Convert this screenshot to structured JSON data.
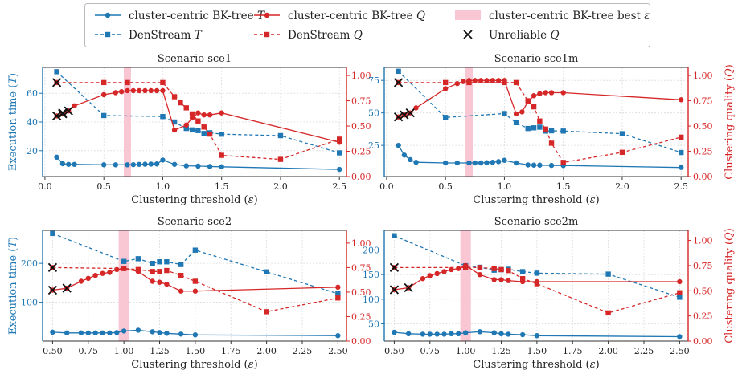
{
  "legend": {
    "entries": [
      {
        "label": "cluster-centric BK-tree T",
        "kind": "bk-T"
      },
      {
        "label": "cluster-centric BK-tree Q",
        "kind": "bk-Q"
      },
      {
        "label": "cluster-centric BK-tree best ε",
        "kind": "best"
      },
      {
        "label": "DenStream T",
        "kind": "ds-T"
      },
      {
        "label": "DenStream Q",
        "kind": "ds-Q"
      },
      {
        "label": "Unreliable Q",
        "kind": "unreliable"
      }
    ]
  },
  "colors": {
    "time": "#1f77b4",
    "quality": "#d62728",
    "band": "#f9c6d3",
    "marker_x": "#111111"
  },
  "chart_data": [
    {
      "type": "line",
      "title": "Scenario sce1",
      "xlabel": "Clustering threshold (ε)",
      "ylabel_left": "Execution time (T)",
      "ylabel_right": "",
      "xlim": [
        -0.02,
        2.56
      ],
      "ylim_left": [
        2,
        78
      ],
      "ylim_right": [
        0,
        1.08
      ],
      "xticks": [
        0.0,
        0.5,
        1.0,
        1.5,
        2.0,
        2.5
      ],
      "xtick_labels": [
        "0.0",
        "0.5",
        "1.0",
        "1.5",
        "2.0",
        "2.5"
      ],
      "yticks_left": [
        20,
        40,
        60
      ],
      "yticks_right": [
        0.0,
        0.25,
        0.5,
        0.75,
        1.0
      ],
      "ytick_labels_right": [
        "0.00",
        "0.25",
        "0.50",
        "0.75",
        "1.00"
      ],
      "best_eps_band": [
        0.69,
        0.71
      ],
      "series": [
        {
          "name": "cluster-centric BK-tree T",
          "axis": "left",
          "x": [
            0.1,
            0.15,
            0.2,
            0.25,
            0.5,
            0.6,
            0.7,
            0.75,
            0.8,
            0.85,
            0.9,
            0.95,
            1.0,
            1.1,
            1.2,
            1.3,
            1.4,
            1.5,
            2.5
          ],
          "y": [
            15.5,
            11,
            10.5,
            10.5,
            10.2,
            10.2,
            10.2,
            10.3,
            10.5,
            10.6,
            10.7,
            10.8,
            13.5,
            10.5,
            9.5,
            9.3,
            9.0,
            8.8,
            7.0
          ]
        },
        {
          "name": "DenStream T",
          "axis": "left",
          "x": [
            0.1,
            0.5,
            1.0,
            1.1,
            1.2,
            1.25,
            1.3,
            1.35,
            1.4,
            1.5,
            2.0,
            2.5
          ],
          "y": [
            75,
            44.5,
            43.8,
            40,
            35.5,
            34.5,
            34,
            32,
            32.5,
            31.5,
            30.5,
            18.5
          ]
        },
        {
          "name": "cluster-centric BK-tree Q",
          "axis": "right",
          "x": [
            0.1,
            0.15,
            0.2,
            0.25,
            0.5,
            0.6,
            0.65,
            0.7,
            0.75,
            0.8,
            0.85,
            0.9,
            0.95,
            1.0,
            1.1,
            1.2,
            1.25,
            1.3,
            1.35,
            1.4,
            1.5,
            2.5
          ],
          "y": [
            0.6,
            0.62,
            0.65,
            0.7,
            0.81,
            0.83,
            0.84,
            0.85,
            0.85,
            0.85,
            0.85,
            0.85,
            0.85,
            0.85,
            0.46,
            0.51,
            0.58,
            0.63,
            0.61,
            0.61,
            0.63,
            0.34
          ]
        },
        {
          "name": "DenStream Q",
          "axis": "right",
          "x": [
            0.1,
            0.5,
            0.7,
            1.0,
            1.1,
            1.15,
            1.2,
            1.25,
            1.3,
            1.35,
            1.4,
            1.5,
            2.0,
            2.5
          ],
          "y": [
            0.93,
            0.93,
            0.93,
            0.93,
            0.79,
            0.73,
            0.68,
            0.62,
            0.55,
            0.49,
            0.42,
            0.21,
            0.17,
            0.37
          ]
        }
      ],
      "unreliable_q": {
        "x": [
          0.1,
          0.15,
          0.2
        ],
        "y": [
          0.93,
          0.63,
          0.65
        ],
        "extra": [
          {
            "x": 0.1,
            "y": 0.6
          },
          {
            "x": 0.15,
            "y": 0.62
          }
        ]
      }
    },
    {
      "type": "line",
      "title": "Scenario sce1m",
      "xlabel": "Clustering threshold (ε)",
      "ylabel_left": "",
      "ylabel_right": "Clustering quality (Q)",
      "xlim": [
        -0.02,
        2.56
      ],
      "ylim_left": [
        1,
        85
      ],
      "ylim_right": [
        0,
        1.08
      ],
      "xticks": [
        0.0,
        0.5,
        1.0,
        1.5,
        2.0,
        2.5
      ],
      "xtick_labels": [
        "0.0",
        "0.5",
        "1.0",
        "1.5",
        "2.0",
        "2.5"
      ],
      "yticks_left": [
        25,
        50,
        75
      ],
      "yticks_right": [
        0.0,
        0.25,
        0.5,
        0.75,
        1.0
      ],
      "ytick_labels_right": [
        "0.00",
        "0.25",
        "0.50",
        "0.75",
        "1.00"
      ],
      "best_eps_band": [
        0.69,
        0.71
      ],
      "series": [
        {
          "name": "cluster-centric BK-tree T",
          "axis": "left",
          "x": [
            0.1,
            0.15,
            0.2,
            0.25,
            0.5,
            0.6,
            0.7,
            0.75,
            0.8,
            0.85,
            0.9,
            0.95,
            1.0,
            1.1,
            1.2,
            1.25,
            1.3,
            1.4,
            1.5,
            2.5
          ],
          "y": [
            25,
            17.5,
            14,
            12,
            11.5,
            11.5,
            11.5,
            11.5,
            11.5,
            11.7,
            12,
            12.5,
            13.5,
            11.5,
            10,
            9.8,
            9.8,
            9.6,
            9.5,
            8.0
          ]
        },
        {
          "name": "DenStream T",
          "axis": "left",
          "x": [
            0.1,
            0.5,
            1.0,
            1.1,
            1.2,
            1.25,
            1.3,
            1.35,
            1.4,
            1.5,
            2.0,
            2.5
          ],
          "y": [
            82,
            46.5,
            49.5,
            42.5,
            38,
            38.5,
            39,
            36,
            36.2,
            36,
            34,
            19.5
          ]
        },
        {
          "name": "cluster-centric BK-tree Q",
          "axis": "right",
          "x": [
            0.1,
            0.15,
            0.2,
            0.25,
            0.5,
            0.6,
            0.65,
            0.7,
            0.75,
            0.8,
            0.85,
            0.9,
            0.95,
            1.0,
            1.1,
            1.15,
            1.2,
            1.25,
            1.3,
            1.35,
            1.4,
            1.5,
            2.5
          ],
          "y": [
            0.59,
            0.61,
            0.63,
            0.68,
            0.87,
            0.92,
            0.94,
            0.95,
            0.95,
            0.95,
            0.95,
            0.95,
            0.95,
            0.95,
            0.62,
            0.64,
            0.74,
            0.8,
            0.82,
            0.83,
            0.83,
            0.83,
            0.76
          ]
        },
        {
          "name": "DenStream Q",
          "axis": "right",
          "x": [
            0.1,
            0.5,
            0.7,
            1.0,
            1.1,
            1.2,
            1.25,
            1.3,
            1.35,
            1.4,
            1.5,
            2.0,
            2.5
          ],
          "y": [
            0.93,
            0.93,
            0.93,
            0.93,
            0.93,
            0.75,
            0.69,
            0.55,
            0.47,
            0.33,
            0.14,
            0.24,
            0.39
          ]
        }
      ],
      "unreliable_q": {
        "x": [
          0.1,
          0.15,
          0.2
        ],
        "y": [
          0.93,
          0.61,
          0.63
        ],
        "extra": [
          {
            "x": 0.1,
            "y": 0.59
          }
        ]
      }
    },
    {
      "type": "line",
      "title": "Scenario sce2",
      "xlabel": "Clustering threshold (ε)",
      "ylabel_left": "Execution time (T)",
      "ylabel_right": "",
      "xlim": [
        0.43,
        2.56
      ],
      "ylim_left": [
        0,
        285
      ],
      "ylim_right": [
        0,
        1.13
      ],
      "xticks": [
        0.5,
        0.75,
        1.0,
        1.25,
        1.5,
        1.75,
        2.0,
        2.25,
        2.5
      ],
      "xtick_labels": [
        "0.50",
        "0.75",
        "1.00",
        "1.25",
        "1.50",
        "1.75",
        "2.00",
        "2.25",
        "2.50"
      ],
      "yticks_left": [
        100,
        200
      ],
      "yticks_right": [
        0.0,
        0.25,
        0.5,
        0.75,
        1.0
      ],
      "ytick_labels_right": [
        "0.00",
        "0.25",
        "0.50",
        "0.75",
        "1.00"
      ],
      "best_eps_band": [
        0.98,
        1.02
      ],
      "series": [
        {
          "name": "cluster-centric BK-tree T",
          "axis": "left",
          "x": [
            0.5,
            0.6,
            0.7,
            0.75,
            0.8,
            0.85,
            0.9,
            0.95,
            1.0,
            1.1,
            1.2,
            1.25,
            1.3,
            1.4,
            1.5,
            2.5
          ],
          "y": [
            23,
            21,
            21,
            21,
            21,
            21,
            21,
            22,
            26,
            28,
            24,
            22,
            20,
            18,
            16,
            14
          ]
        },
        {
          "name": "DenStream T",
          "axis": "left",
          "x": [
            0.5,
            1.0,
            1.1,
            1.2,
            1.25,
            1.3,
            1.4,
            1.5,
            2.0,
            2.5
          ],
          "y": [
            277,
            205,
            212,
            200,
            204,
            204,
            197,
            234,
            178,
            122
          ]
        },
        {
          "name": "cluster-centric BK-tree Q",
          "axis": "right",
          "x": [
            0.5,
            0.6,
            0.7,
            0.75,
            0.8,
            0.85,
            0.9,
            0.95,
            1.0,
            1.1,
            1.2,
            1.25,
            1.3,
            1.4,
            1.5,
            2.5
          ],
          "y": [
            0.52,
            0.54,
            0.61,
            0.64,
            0.67,
            0.69,
            0.7,
            0.73,
            0.74,
            0.71,
            0.61,
            0.6,
            0.58,
            0.51,
            0.51,
            0.55
          ]
        },
        {
          "name": "DenStream Q",
          "axis": "right",
          "x": [
            0.5,
            1.0,
            1.1,
            1.2,
            1.25,
            1.3,
            1.4,
            1.5,
            2.0,
            2.5
          ],
          "y": [
            0.75,
            0.74,
            0.73,
            0.71,
            0.71,
            0.72,
            0.67,
            0.61,
            0.3,
            0.44
          ]
        }
      ],
      "unreliable_q": {
        "x": [
          0.5,
          0.5,
          0.6
        ],
        "y": [
          0.75,
          0.52,
          0.54
        ],
        "extra": []
      }
    },
    {
      "type": "line",
      "title": "Scenario sce2m",
      "xlabel": "Clustering threshold (ε)",
      "ylabel_left": "",
      "ylabel_right": "Clustering quality (Q)",
      "xlim": [
        0.43,
        2.56
      ],
      "ylim_left": [
        15,
        240
      ],
      "ylim_right": [
        0,
        1.1
      ],
      "xticks": [
        0.5,
        0.75,
        1.0,
        1.25,
        1.5,
        1.75,
        2.0,
        2.25,
        2.5
      ],
      "xtick_labels": [
        "0.50",
        "0.75",
        "1.00",
        "1.25",
        "1.50",
        "1.75",
        "2.00",
        "2.25",
        "2.50"
      ],
      "yticks_left": [
        50,
        100,
        150,
        200
      ],
      "yticks_right": [
        0.0,
        0.25,
        0.5,
        0.75,
        1.0
      ],
      "ytick_labels_right": [
        "0.00",
        "0.25",
        "0.50",
        "0.75",
        "1.00"
      ],
      "best_eps_band": [
        0.98,
        1.02
      ],
      "series": [
        {
          "name": "cluster-centric BK-tree T",
          "axis": "left",
          "x": [
            0.5,
            0.6,
            0.7,
            0.75,
            0.8,
            0.85,
            0.9,
            0.95,
            1.0,
            1.1,
            1.2,
            1.25,
            1.3,
            1.4,
            1.5,
            2.5
          ],
          "y": [
            33,
            30,
            29,
            29,
            29,
            29,
            30,
            30,
            32,
            34,
            32,
            30,
            29,
            28,
            26,
            24
          ]
        },
        {
          "name": "DenStream T",
          "axis": "left",
          "x": [
            0.5,
            1.0,
            1.1,
            1.2,
            1.25,
            1.3,
            1.4,
            1.5,
            2.0,
            2.5
          ],
          "y": [
            229,
            168,
            165,
            159,
            160,
            161,
            156,
            153,
            151,
            104
          ]
        },
        {
          "name": "cluster-centric BK-tree Q",
          "axis": "right",
          "x": [
            0.5,
            0.6,
            0.7,
            0.75,
            0.8,
            0.85,
            0.9,
            0.95,
            1.0,
            1.1,
            1.2,
            1.25,
            1.3,
            1.4,
            1.5,
            2.5
          ],
          "y": [
            0.51,
            0.53,
            0.62,
            0.65,
            0.67,
            0.69,
            0.71,
            0.72,
            0.75,
            0.66,
            0.61,
            0.61,
            0.6,
            0.59,
            0.59,
            0.59
          ]
        },
        {
          "name": "DenStream Q",
          "axis": "right",
          "x": [
            0.5,
            1.0,
            1.1,
            1.2,
            1.25,
            1.3,
            1.4,
            1.5,
            2.0,
            2.5
          ],
          "y": [
            0.73,
            0.73,
            0.73,
            0.72,
            0.71,
            0.7,
            0.62,
            0.57,
            0.28,
            0.48
          ]
        }
      ],
      "unreliable_q": {
        "x": [
          0.5,
          0.5,
          0.6
        ],
        "y": [
          0.73,
          0.51,
          0.53
        ],
        "extra": []
      }
    }
  ]
}
